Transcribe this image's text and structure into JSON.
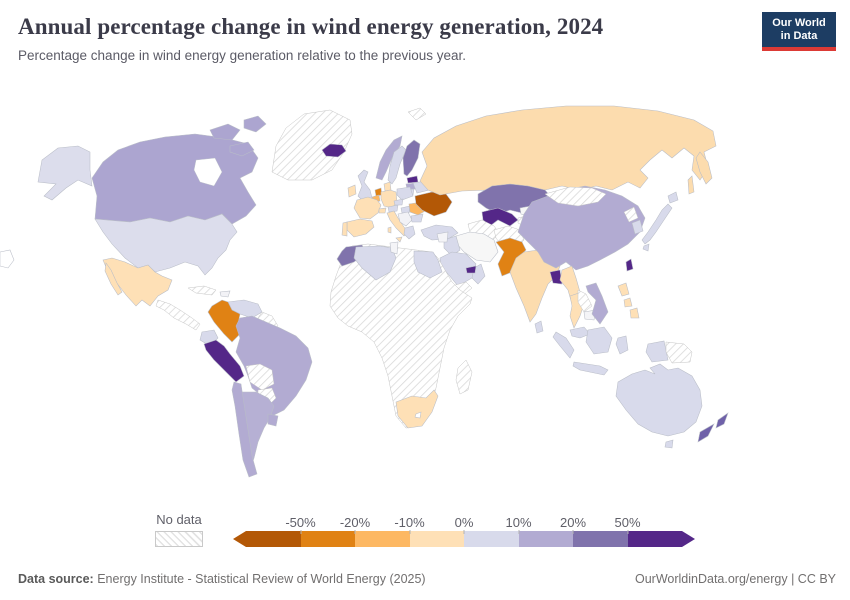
{
  "header": {
    "title": "Annual percentage change in wind energy generation, 2024",
    "subtitle": "Percentage change in wind energy generation relative to the previous year.",
    "logo_line1": "Our World",
    "logo_line2": "in Data"
  },
  "brand": {
    "navy": "#1d3d63",
    "red": "#dc3a35"
  },
  "legend": {
    "no_data_label": "No data",
    "ticks": [
      "-50%",
      "-20%",
      "-10%",
      "0%",
      "10%",
      "20%",
      "50%"
    ],
    "colors": [
      "#b35806",
      "#e08214",
      "#fdb863",
      "#fee0b6",
      "#d8daeb",
      "#b2abd2",
      "#8073ac",
      "#542788"
    ]
  },
  "footer": {
    "source_label": "Data source:",
    "source_text": " Energy Institute - Statistical Review of World Energy (2025)",
    "right_text": "OurWorldinData.org/energy | CC BY"
  },
  "chart_data": {
    "type": "choropleth",
    "title": "Annual percentage change in wind energy generation, 2024",
    "unit": "%",
    "legend_position": "bottom",
    "bin_labels": [
      "< -50%",
      "-50% to -20%",
      "-20% to -10%",
      "-10% to 0%",
      "0% to 10%",
      "10% to 20%",
      "20% to 50%",
      "> 50%",
      "No data"
    ],
    "bin_colors": [
      "#b35806",
      "#e08214",
      "#fdb863",
      "#fee0b6",
      "#d8daeb",
      "#b2abd2",
      "#8073ac",
      "#542788",
      "hatch"
    ],
    "regions": {
      "Ukraine": "< -50%",
      "Colombia": "-50% to -20%",
      "Pakistan": "-50% to -20%",
      "Netherlands": "-50% to -20%",
      "Belgium": "-20% to -10%",
      "Romania": "-20% to -10%",
      "Mexico": "-10% to 0%",
      "Russia": "-10% to 0%",
      "India": "-10% to 0%",
      "France": "-10% to 0%",
      "Spain": "-10% to 0%",
      "Portugal": "-10% to 0%",
      "Germany": "-10% to 0%",
      "Denmark": "-10% to 0%",
      "Ireland": "-10% to 0%",
      "Italy": "-10% to 0%",
      "Switzerland": "-10% to 0%",
      "Thailand": "-10% to 0%",
      "Myanmar": "-10% to 0%",
      "Philippines": "-10% to 0%",
      "South Africa": "-10% to 0%",
      "United States": "0% to 10%",
      "United Kingdom": "0% to 10%",
      "Sweden": "0% to 10%",
      "Poland": "0% to 10%",
      "Greece": "0% to 10%",
      "Turkey": "0% to 10%",
      "Belarus": "0% to 10%",
      "Algeria": "0% to 10%",
      "Egypt": "0% to 10%",
      "Saudi Arabia": "0% to 10%",
      "Iraq": "0% to 10%",
      "Oman": "0% to 10%",
      "Sri Lanka": "0% to 10%",
      "South Korea": "0% to 10%",
      "Japan": "0% to 10%",
      "Malaysia": "0% to 10%",
      "Indonesia": "0% to 10%",
      "Australia": "0% to 10%",
      "Venezuela": "0% to 10%",
      "Ecuador": "0% to 10%",
      "Iran": "~0%",
      "Canada": "10% to 20%",
      "Brazil": "10% to 20%",
      "Chile": "10% to 20%",
      "Argentina": "10% to 20%",
      "Norway": "10% to 20%",
      "China": "10% to 20%",
      "Vietnam": "10% to 20%",
      "Finland": "20% to 50%",
      "Kazakhstan": "20% to 50%",
      "Morocco": "20% to 50%",
      "New Zealand": "20% to 50%",
      "Peru": "> 50%",
      "Iceland": "> 50%",
      "Estonia": "> 50%",
      "Uzbekistan": "> 50%",
      "United Arab Emirates": "> 50%",
      "Bangladesh": "> 50%",
      "Taiwan": "> 50%",
      "Greenland": "No data",
      "Mongolia": "No data",
      "Afghanistan": "No data",
      "Turkmenistan": "No data",
      "Libya": "No data",
      "Madagascar": "No data",
      "Bolivia": "No data",
      "Paraguay": "No data",
      "Cuba": "No data",
      "Laos": "No data",
      "North Korea": "No data",
      "Papua New Guinea": "No data",
      "Yemen": "No data",
      "Most of Sub-Saharan Africa": "No data"
    }
  },
  "map": {
    "colors": {
      "greenland": "hatch",
      "svalbard": "hatch",
      "canada": "#aca5d0",
      "alaska": "#dcddec",
      "usa": "#dcddec",
      "mexico": "#fee0b6",
      "central_america": "hatch",
      "cuba": "hatch",
      "hispaniola": "#f2f2f6",
      "venezuela": "#d8daeb",
      "guyana": "hatch",
      "colombia": "#e08214",
      "ecuador": "#d8daeb",
      "peru": "#542788",
      "brazil": "#b2abd2",
      "bolivia": "hatch",
      "paraguay": "hatch",
      "chile": "#b2abd2",
      "argentina": "#b6b0d4",
      "uruguay": "#b2abd2",
      "iceland": "#542788",
      "uk": "#d8daeb",
      "ireland": "#fee0b6",
      "norway": "#b2abd2",
      "sweden": "#d8daeb",
      "finland": "#8073ac",
      "estonia": "#542788",
      "latvia": "#b2abd2",
      "lithuania": "#d8daeb",
      "denmark": "#fee0b6",
      "netherlands": "#e08214",
      "belgium": "#fdb863",
      "germany": "#fee0b6",
      "poland": "#d8daeb",
      "belarus": "#d8daeb",
      "france": "#fee0b6",
      "switzerland": "#fee0b6",
      "austria": "#d8daeb",
      "czechia": "#d8daeb",
      "hungary": "#d8daeb",
      "spain": "#fee0b6",
      "portugal": "#fee0b6",
      "italy": "#fee0b6",
      "balkans": "#f2f2f6",
      "greece": "#d8daeb",
      "romania": "#fdb863",
      "bulgaria": "#d8daeb",
      "ukraine": "#b35806",
      "turkey": "#d8daeb",
      "russia": "#fcdcae",
      "russia_sliver": "#ffffff",
      "kazakhstan": "#8073ac",
      "uzbekistan": "#542788",
      "turkmenistan": "hatch",
      "kyrgyzstan": "#f7f7f7",
      "tajikistan": "hatch",
      "afghanistan": "hatch",
      "pakistan": "#e08214",
      "iran": "#f7f7f7",
      "iraq": "#d8daeb",
      "syria": "#f4f4f7",
      "saudi_arabia": "#d8daeb",
      "yemen": "hatch",
      "oman": "#d8daeb",
      "uae": "#542788",
      "india": "#fcdcae",
      "bangladesh": "#542788",
      "sri_lanka": "#d8daeb",
      "myanmar": "#fee0b6",
      "thailand": "#fee0b6",
      "laos": "hatch",
      "cambodia": "#f4f4f7",
      "vietnam": "#b2abd2",
      "china": "#b2abd2",
      "mongolia": "hatch",
      "north_korea": "hatch",
      "south_korea": "#d8daeb",
      "japan": "#d8daeb",
      "taiwan": "#542788",
      "philippines": "#fee0b6",
      "malaysia": "#d8daeb",
      "indonesia": "#d8daeb",
      "png": "hatch",
      "australia": "#d8daeb",
      "new_zealand": "#6f61a9",
      "africa_nodata": "hatch",
      "madagascar": "hatch",
      "morocco": "#8073ac",
      "algeria": "#d8daeb",
      "tunisia": "#f4f4f7",
      "egypt": "#d8daeb",
      "south_africa": "#fee0b6",
      "lesotho": "#ffffff"
    }
  }
}
